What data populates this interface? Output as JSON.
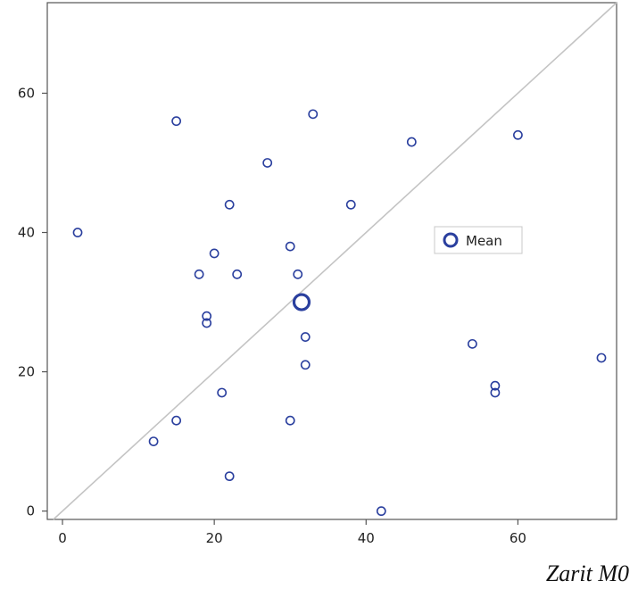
{
  "chart_data": {
    "type": "scatter",
    "title": "",
    "xlabel": "Zarit M0",
    "ylabel": "",
    "xlim": [
      -2,
      73
    ],
    "ylim": [
      -1.2,
      73
    ],
    "x_ticks": [
      0,
      20,
      40,
      60
    ],
    "y_ticks": [
      0,
      20,
      40,
      60
    ],
    "grid": false,
    "reference_line": "y = x",
    "legend_position": "right",
    "colors": {
      "marker": "#2a3f9e",
      "diagonal": "#c4c4c4",
      "frame": "#555555"
    },
    "series": [
      {
        "name": "",
        "points": [
          [
            2,
            40
          ],
          [
            12,
            10
          ],
          [
            15,
            56
          ],
          [
            15,
            13
          ],
          [
            18,
            34
          ],
          [
            19,
            28
          ],
          [
            19,
            27
          ],
          [
            20,
            37
          ],
          [
            21,
            17
          ],
          [
            22,
            44
          ],
          [
            22,
            5
          ],
          [
            23,
            34
          ],
          [
            27,
            50
          ],
          [
            30,
            38
          ],
          [
            30,
            13
          ],
          [
            31,
            34
          ],
          [
            32,
            25
          ],
          [
            32,
            21
          ],
          [
            33,
            57
          ],
          [
            38,
            44
          ],
          [
            42,
            0
          ],
          [
            46,
            53
          ],
          [
            54,
            24
          ],
          [
            57,
            18
          ],
          [
            57,
            17
          ],
          [
            60,
            54
          ],
          [
            71,
            22
          ]
        ]
      },
      {
        "name": "Mean",
        "points": [
          [
            31.5,
            30
          ]
        ]
      }
    ]
  }
}
